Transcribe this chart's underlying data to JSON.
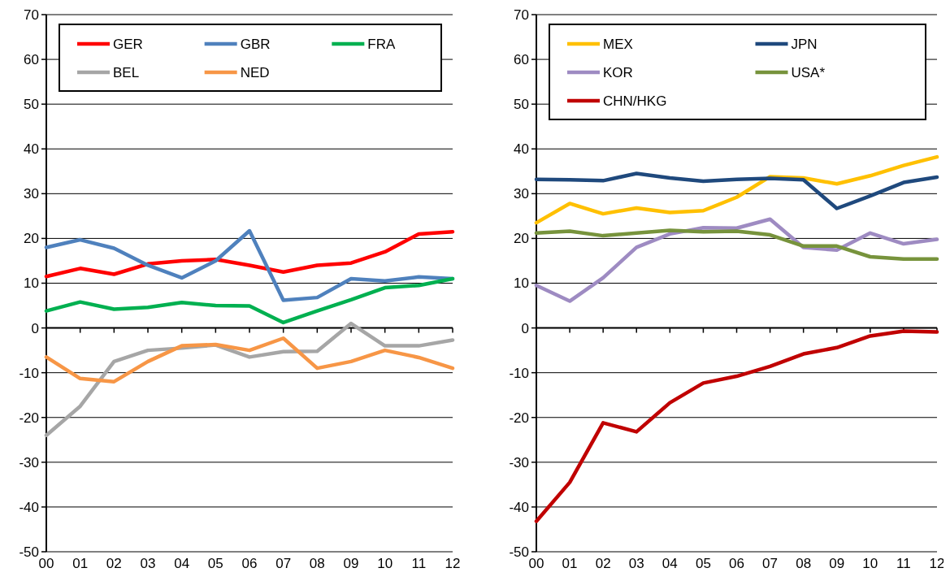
{
  "chart_data": [
    {
      "type": "line",
      "categories": [
        "00",
        "01",
        "02",
        "03",
        "04",
        "05",
        "06",
        "07",
        "08",
        "09",
        "10",
        "11",
        "12"
      ],
      "ylim": [
        -50,
        70
      ],
      "yticks": [
        -50,
        -40,
        -30,
        -20,
        -10,
        0,
        10,
        20,
        30,
        40,
        50,
        60,
        70
      ],
      "grid": "y",
      "legend": "top",
      "line_style": "solid",
      "marker": "none",
      "series": [
        {
          "name": "GER",
          "color": "#ff0000",
          "values": [
            11.5,
            13.3,
            12,
            14.3,
            15,
            15.3,
            14,
            12.5,
            14,
            14.5,
            17,
            21,
            21.5
          ]
        },
        {
          "name": "GBR",
          "color": "#4f81bd",
          "values": [
            18,
            19.7,
            17.8,
            14,
            11.2,
            15,
            21.7,
            6.2,
            6.8,
            11,
            10.5,
            11.4,
            11
          ]
        },
        {
          "name": "FRA",
          "color": "#00b050",
          "values": [
            3.8,
            5.8,
            4.2,
            4.6,
            5.7,
            5,
            4.9,
            1.2,
            3.8,
            6.3,
            9,
            9.5,
            11
          ]
        },
        {
          "name": "BEL",
          "color": "#a6a6a6",
          "values": [
            -24,
            -17.5,
            -7.5,
            -5,
            -4.5,
            -3.8,
            -6.5,
            -5.3,
            -5.2,
            1,
            -4,
            -4,
            -2.7
          ]
        },
        {
          "name": "NED",
          "color": "#f79646",
          "values": [
            -6.5,
            -11.3,
            -12,
            -7.5,
            -4,
            -3.7,
            -5,
            -2.3,
            -9,
            -7.5,
            -5,
            -6.6,
            -9
          ]
        }
      ]
    },
    {
      "type": "line",
      "categories": [
        "00",
        "01",
        "02",
        "03",
        "04",
        "05",
        "06",
        "07",
        "08",
        "09",
        "10",
        "11",
        "12"
      ],
      "ylim": [
        -50,
        70
      ],
      "yticks": [
        -50,
        -40,
        -30,
        -20,
        -10,
        0,
        10,
        20,
        30,
        40,
        50,
        60,
        70
      ],
      "grid": "y",
      "legend": "top",
      "line_style": "solid",
      "marker": "none",
      "series": [
        {
          "name": "MEX",
          "color": "#ffc000",
          "values": [
            23.5,
            27.8,
            25.5,
            26.8,
            25.8,
            26.2,
            29.2,
            33.8,
            33.5,
            32.2,
            34,
            36.3,
            38.2
          ]
        },
        {
          "name": "JPN",
          "color": "#1f497d",
          "values": [
            33.2,
            33.1,
            32.9,
            34.5,
            33.5,
            32.8,
            33.2,
            33.4,
            33.1,
            26.7,
            29.5,
            32.5,
            33.7
          ]
        },
        {
          "name": "KOR",
          "color": "#9e8bc2",
          "values": [
            9.5,
            6,
            11.2,
            18,
            21,
            22.4,
            22.3,
            24.3,
            18,
            17.4,
            21.2,
            18.8,
            19.8
          ]
        },
        {
          "name": "USA*",
          "color": "#77933c",
          "values": [
            21.2,
            21.6,
            20.6,
            21.2,
            21.8,
            21.5,
            21.6,
            20.8,
            18.3,
            18.3,
            15.9,
            15.4,
            15.4
          ]
        },
        {
          "name": "CHN/HKG",
          "color": "#c00000",
          "values": [
            -43.2,
            -34.5,
            -21.2,
            -23.2,
            -16.7,
            -12.3,
            -10.8,
            -8.6,
            -5.8,
            -4.4,
            -1.8,
            -0.7,
            -0.9
          ]
        }
      ]
    }
  ]
}
